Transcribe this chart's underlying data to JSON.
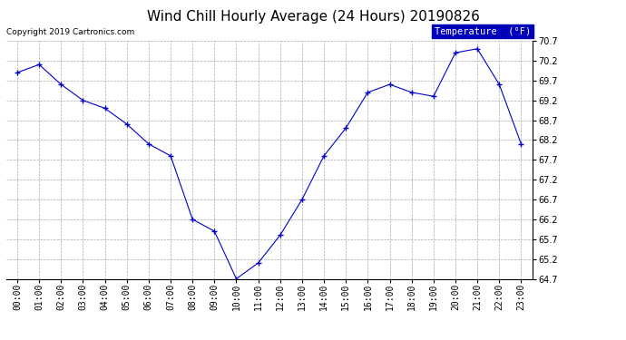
{
  "title": "Wind Chill Hourly Average (24 Hours) 20190826",
  "copyright": "Copyright 2019 Cartronics.com",
  "legend_label": "Temperature  (°F)",
  "hours": [
    "00:00",
    "01:00",
    "02:00",
    "03:00",
    "04:00",
    "05:00",
    "06:00",
    "07:00",
    "08:00",
    "09:00",
    "10:00",
    "11:00",
    "12:00",
    "13:00",
    "14:00",
    "15:00",
    "16:00",
    "17:00",
    "18:00",
    "19:00",
    "20:00",
    "21:00",
    "22:00",
    "23:00"
  ],
  "values": [
    69.9,
    70.1,
    69.6,
    69.2,
    69.0,
    68.6,
    68.1,
    67.8,
    66.2,
    65.9,
    64.7,
    65.1,
    65.8,
    66.7,
    67.8,
    68.5,
    69.4,
    69.6,
    69.4,
    69.3,
    70.4,
    70.5,
    69.6,
    68.1
  ],
  "ylim": [
    64.7,
    70.7
  ],
  "yticks": [
    64.7,
    65.2,
    65.7,
    66.2,
    66.7,
    67.2,
    67.7,
    68.2,
    68.7,
    69.2,
    69.7,
    70.2,
    70.7
  ],
  "line_color": "#0000cc",
  "marker": "+",
  "marker_size": 4,
  "bg_color": "#ffffff",
  "grid_color": "#aaaaaa",
  "title_fontsize": 11,
  "axis_fontsize": 7,
  "legend_bg": "#0000bb",
  "legend_fg": "#ffffff"
}
